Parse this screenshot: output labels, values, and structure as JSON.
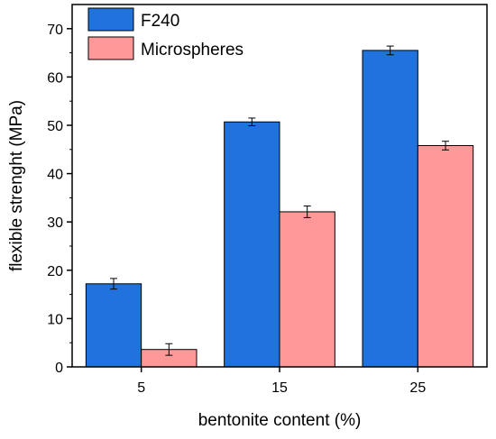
{
  "chart_data": {
    "type": "bar",
    "categories": [
      "5",
      "15",
      "25"
    ],
    "xlabel": "bentonite content (%)",
    "ylabel": "flexible strenght (MPa)",
    "ylim": [
      0,
      75
    ],
    "yticks": [
      0,
      10,
      20,
      30,
      40,
      50,
      60,
      70
    ],
    "grid": false,
    "legend_position": "top-left",
    "error_bars": true,
    "series": [
      {
        "name": "F240",
        "color": "#2073DC",
        "values": [
          17.2,
          50.7,
          65.5
        ],
        "errors": [
          1.1,
          0.8,
          0.9
        ]
      },
      {
        "name": "Microspheres",
        "color": "#FF9999",
        "values": [
          3.6,
          32.1,
          45.8
        ],
        "errors": [
          1.2,
          1.2,
          0.9
        ]
      }
    ]
  }
}
